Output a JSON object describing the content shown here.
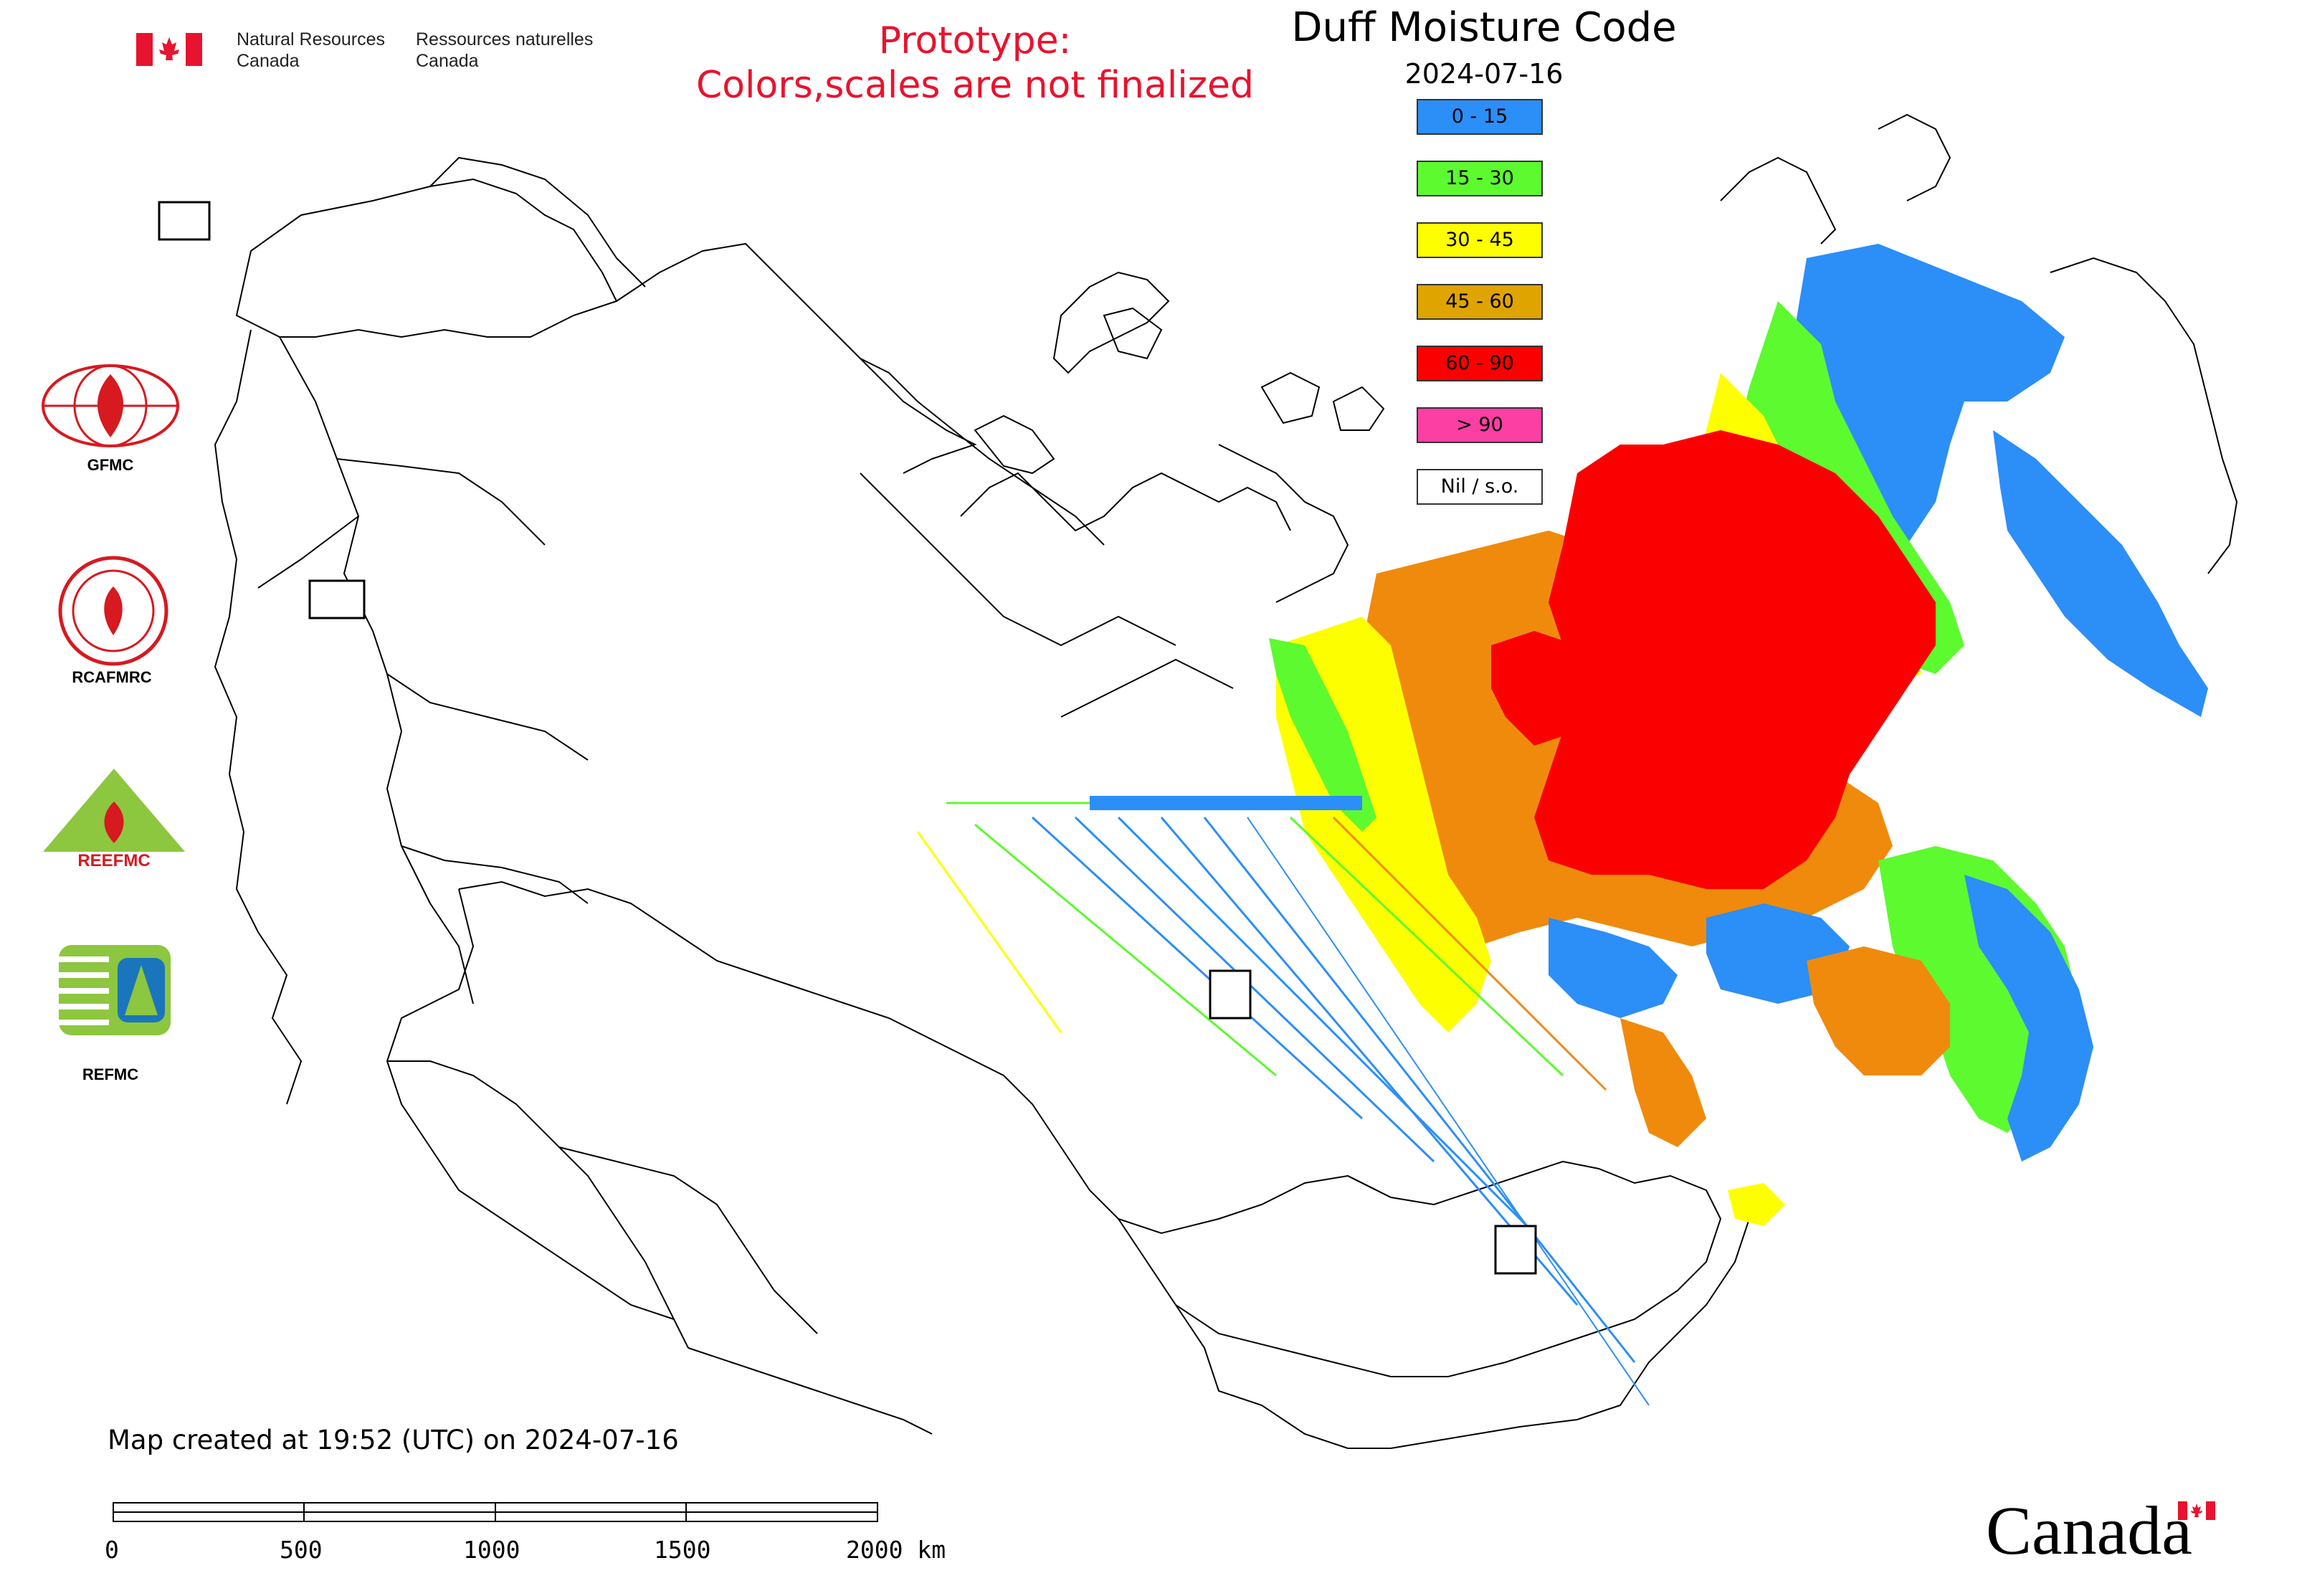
{
  "header": {
    "department_en": [
      "Natural Resources",
      "Canada"
    ],
    "department_fr": [
      "Ressources naturelles",
      "Canada"
    ],
    "flag_icon": "canada-flag-icon"
  },
  "notice": {
    "line1": "Prototype:",
    "line2": "Colors,scales are not finalized",
    "color": "#e8132f"
  },
  "map": {
    "title": "Duff Moisture Code",
    "date": "2024-07-16",
    "created": "Map created at 19:52 (UTC) on 2024-07-16"
  },
  "legend": {
    "items": [
      {
        "label": "0 - 15",
        "color": "#2c8ef7"
      },
      {
        "label": "15 - 30",
        "color": "#5dfa30"
      },
      {
        "label": "30 - 45",
        "color": "#fdff00"
      },
      {
        "label": "45 - 60",
        "color": "#e0a400"
      },
      {
        "label": "60 - 90",
        "color": "#fb0000"
      },
      {
        "label": "> 90",
        "color": "#fc3fa3"
      },
      {
        "label": "Nil / s.o.",
        "color": "#ffffff"
      }
    ]
  },
  "partners": [
    {
      "label": "GFMC",
      "icon": "gfmc-logo-icon"
    },
    {
      "label": "RCAFMRC",
      "icon": "rcafmrc-logo-icon"
    },
    {
      "label": "",
      "icon": "reefmc-logo-icon"
    },
    {
      "label": "REFMC",
      "icon": "refmc-logo-icon"
    }
  ],
  "scale_bar": {
    "labels": [
      "0",
      "500",
      "1000",
      "1500",
      "2000 km"
    ]
  },
  "wordmark": {
    "text": "Canada",
    "icon": "canada-flag-icon"
  }
}
